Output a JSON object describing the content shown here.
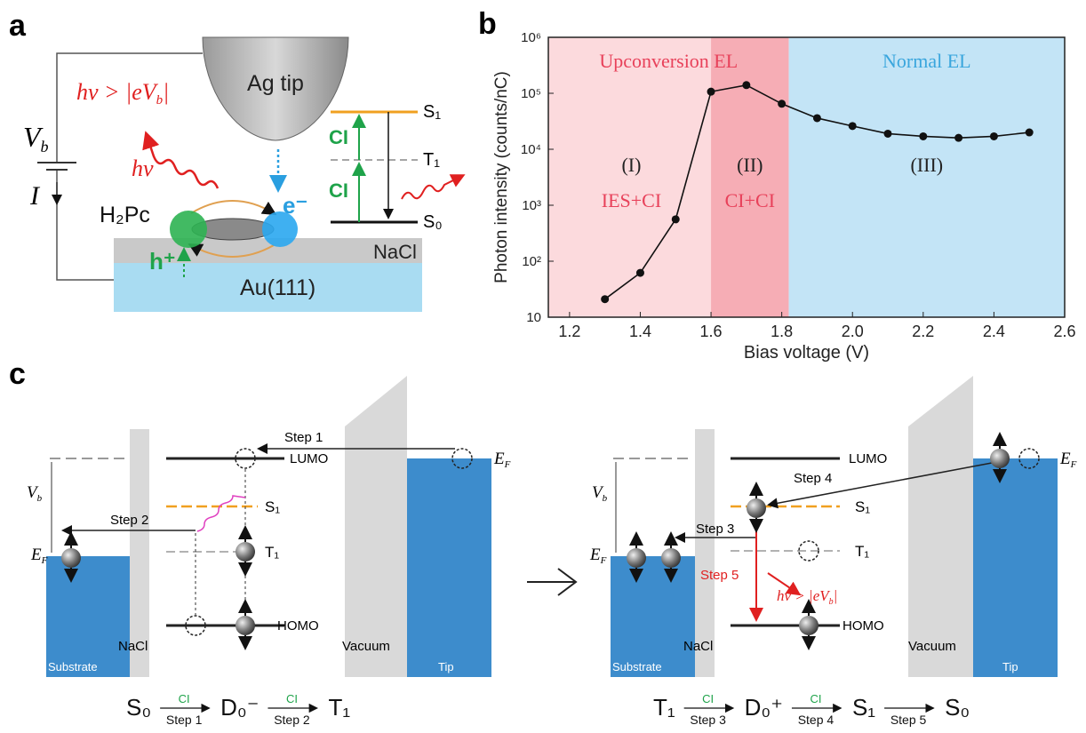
{
  "panel_a": {
    "label": "a",
    "tip": "Ag tip",
    "condition": {
      "pre": "hν > |eV",
      "sub": "b",
      "post": "|"
    },
    "bias": {
      "symbol": "V",
      "sub": "b"
    },
    "current": "I",
    "photon": "hν",
    "molecule": "H₂Pc",
    "electron": "e⁻",
    "hole": "h⁺",
    "insulator": "NaCl",
    "substrate": "Au(111)",
    "levels": [
      "S₁",
      "T₁",
      "S₀"
    ],
    "transitions": [
      "CI",
      "CI"
    ]
  },
  "chart_data": {
    "type": "line",
    "label": "b",
    "x_label": "Bias voltage (V)",
    "y_label": "Photon intensity (counts/nC)",
    "log_y": true,
    "color": "#111111",
    "x": [
      1.3,
      1.4,
      1.5,
      1.6,
      1.7,
      1.8,
      1.9,
      2.0,
      2.1,
      2.2,
      2.3,
      2.4,
      2.5
    ],
    "values": [
      21,
      62,
      560,
      107000,
      140000,
      65000,
      36000,
      26000,
      19000,
      17000,
      16000,
      17000,
      20000
    ],
    "xlim": [
      1.14,
      2.6
    ],
    "xticks": [
      {
        "value": 1.2,
        "label": "1.2"
      },
      {
        "value": 1.4,
        "label": "1.4"
      },
      {
        "value": 1.6,
        "label": "1.6"
      },
      {
        "value": 1.8,
        "label": "1.8"
      },
      {
        "value": 2.0,
        "label": "2.0"
      },
      {
        "value": 2.2,
        "label": "2.2"
      },
      {
        "value": 2.4,
        "label": "2.4"
      },
      {
        "value": 2.6,
        "label": "2.6"
      }
    ],
    "ylim": [
      10,
      1000000
    ],
    "yticks": [
      10,
      {
        "value": 100,
        "label": "10²"
      },
      {
        "value": 1000,
        "label": "10³"
      },
      {
        "value": 10000,
        "label": "10⁴"
      },
      {
        "value": 100000,
        "label": "10⁵"
      },
      {
        "value": 1000000,
        "label": "10⁶"
      }
    ],
    "region_bounds": [
      1.6,
      1.82
    ],
    "regions": [
      {
        "label": "(I)",
        "process": "IES+CI",
        "color": "#fcdadd"
      },
      {
        "label": "(II)",
        "process": "CI+CI",
        "color": "#f6adb5"
      },
      {
        "label": "(III)",
        "color": "#c3e4f6"
      }
    ],
    "bands": [
      {
        "name": "Upconversion EL",
        "color": "#e8415a"
      },
      {
        "name": "Normal EL",
        "color": "#3aa6dd"
      }
    ]
  },
  "panel_c": {
    "label": "c",
    "left": {
      "step1": "Step 1",
      "step2": "Step 2",
      "lumo": "LUMO",
      "homo": "HOMO",
      "s1": "S₁",
      "t1": "T₁",
      "ef_tip": {
        "symbol": "E",
        "sub": "F"
      },
      "ef_sub": {
        "symbol": "E",
        "sub": "F"
      },
      "bias": {
        "symbol": "V",
        "sub": "b"
      },
      "insulator": "NaCl",
      "vacuum": "Vacuum",
      "substrate": "Substrate",
      "tip": "Tip",
      "scheme": [
        {
          "text": "S₀"
        },
        {
          "above": "CI",
          "below": "Step 1"
        },
        {
          "text": "D₀⁻"
        },
        {
          "above": "CI",
          "below": "Step 2"
        },
        {
          "text": "T₁"
        }
      ]
    },
    "right": {
      "step3": "Step 3",
      "step4": "Step 4",
      "step5": "Step 5",
      "emission": {
        "pre": "hν > |eV",
        "sub": "b",
        "post": "|"
      },
      "lumo": "LUMO",
      "homo": "HOMO",
      "s1": "S₁",
      "t1": "T₁",
      "ef_tip": {
        "symbol": "E",
        "sub": "F"
      },
      "ef_sub": {
        "symbol": "E",
        "sub": "F"
      },
      "bias": {
        "symbol": "V",
        "sub": "b"
      },
      "insulator": "NaCl",
      "vacuum": "Vacuum",
      "substrate": "Substrate",
      "tip": "Tip",
      "scheme": [
        {
          "text": "T₁"
        },
        {
          "above": "CI",
          "below": "Step 3"
        },
        {
          "text": "D₀⁺"
        },
        {
          "above": "CI",
          "below": "Step 4"
        },
        {
          "text": "S₁"
        },
        {
          "below": "Step 5"
        },
        {
          "text": "S₀"
        }
      ]
    }
  }
}
